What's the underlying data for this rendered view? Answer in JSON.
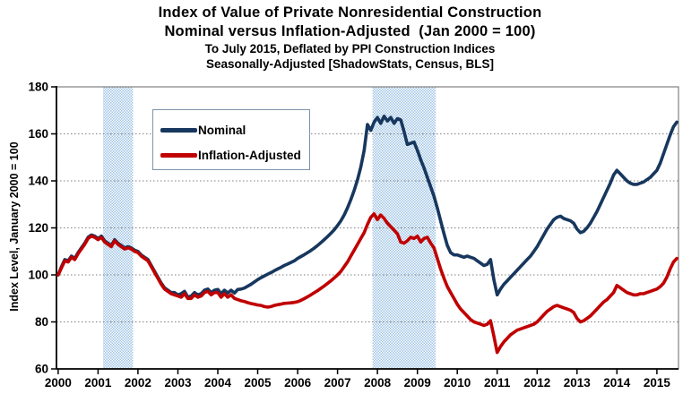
{
  "chart_data": {
    "type": "line",
    "title_lines": [
      "Index of Value of Private Nonresidential Construction",
      "Nominal versus Inflation-Adjusted  (Jan 2000 = 100)",
      "To July 2015, Deflated by PPI Construction Indices",
      "Seasonally-Adjusted [ShadowStats, Census, BLS]"
    ],
    "y_axis": {
      "label": "Index Level, January 2000 = 100",
      "min": 60,
      "max": 180,
      "tick_step": 20,
      "ticks": [
        180,
        160,
        140,
        120,
        100,
        80,
        60
      ]
    },
    "x_axis": {
      "ticks": [
        2000,
        2001,
        2002,
        2003,
        2004,
        2005,
        2006,
        2007,
        2008,
        2009,
        2010,
        2011,
        2012,
        2013,
        2014,
        2015
      ],
      "start": "2000-01",
      "end": "2015-07",
      "frequency": "monthly"
    },
    "recession_bands": [
      {
        "start": "2001-03",
        "end": "2001-11"
      },
      {
        "start": "2007-12",
        "end": "2009-06"
      }
    ],
    "band_color": "#9DC3E6",
    "grid_color": "#808080",
    "frame_color": "#808080",
    "axis_color": "#000000",
    "legend": {
      "items": [
        "Nominal",
        "Inflation-Adjusted"
      ]
    },
    "series": [
      {
        "name": "Nominal",
        "color": "#17375E",
        "values": [
          100,
          103.5,
          106.5,
          106,
          108,
          107,
          109.5,
          111.5,
          113.5,
          116,
          117,
          116.5,
          115.5,
          116.5,
          114.5,
          113.5,
          112.5,
          115,
          113.5,
          112.5,
          111.5,
          112,
          111.5,
          110.5,
          110,
          108.5,
          107.5,
          106.5,
          104,
          101.5,
          99,
          96.5,
          94.5,
          93.5,
          92.5,
          92.5,
          91.5,
          92,
          93,
          90.5,
          91,
          92.5,
          91.5,
          92,
          93.5,
          94,
          92.5,
          93.5,
          93.8,
          92,
          93.5,
          92.3,
          93.5,
          92.3,
          93.8,
          94,
          94.4,
          95.2,
          96,
          97,
          98,
          98.8,
          99.6,
          100.3,
          101,
          101.8,
          102.5,
          103.2,
          104,
          104.6,
          105.3,
          106,
          107,
          107.8,
          108.6,
          109.5,
          110.4,
          111.4,
          112.5,
          113.7,
          115,
          116.3,
          117.7,
          119.2,
          121,
          123,
          125.5,
          128.5,
          132,
          136,
          140.5,
          146,
          153,
          164,
          161.5,
          165,
          167,
          164.5,
          167.5,
          165.5,
          167,
          164.5,
          166.5,
          166,
          161,
          155.5,
          156,
          156.5,
          153,
          149,
          145.5,
          141.5,
          137.5,
          133.5,
          128.5,
          123,
          117.5,
          112.5,
          109.5,
          108.5,
          108.5,
          108,
          107.5,
          108,
          107.5,
          107,
          106,
          105,
          104,
          104.5,
          106.5,
          98,
          91.5,
          94,
          96,
          97.5,
          99,
          100.5,
          102,
          103.5,
          105,
          106.5,
          108,
          110,
          112,
          114.5,
          117,
          119.5,
          121.5,
          123.5,
          124.5,
          125,
          124,
          123.5,
          123,
          122,
          119.5,
          118,
          118.5,
          120,
          122,
          124.5,
          127,
          130,
          133,
          136,
          139,
          142.5,
          144.5,
          143,
          141.5,
          140,
          139,
          138.5,
          138.5,
          139,
          139.5,
          140.5,
          141.5,
          143,
          144.5,
          147.5,
          151.5,
          155.5,
          159.5,
          163,
          165
        ]
      },
      {
        "name": "Inflation-Adjusted",
        "color": "#C00000",
        "values": [
          100,
          103,
          106,
          105.5,
          107.5,
          106.5,
          109,
          111,
          113,
          115.5,
          116.5,
          116,
          115,
          116,
          114,
          113,
          112,
          114.5,
          113,
          112,
          111,
          111.5,
          111,
          110,
          109.5,
          108,
          107,
          106,
          103.5,
          101,
          98.5,
          96,
          94,
          93,
          92,
          91.5,
          91,
          90.5,
          92,
          90,
          90,
          91.5,
          90.5,
          91,
          92.5,
          93,
          91.5,
          92.5,
          92.5,
          90.5,
          92,
          90.5,
          91.5,
          90,
          89.5,
          89,
          88.7,
          88.2,
          87.8,
          87.5,
          87.2,
          87,
          86.5,
          86.3,
          86.5,
          87,
          87.3,
          87.6,
          87.9,
          88,
          88.1,
          88.3,
          88.6,
          89.2,
          89.9,
          90.7,
          91.5,
          92.4,
          93.3,
          94.3,
          95.3,
          96.4,
          97.5,
          98.7,
          100,
          101.5,
          103.5,
          105.5,
          108,
          110.5,
          113,
          115.5,
          118,
          121.5,
          124.5,
          126,
          123.5,
          125.5,
          124,
          122,
          120.5,
          119,
          117.5,
          114,
          113.5,
          114.5,
          116,
          115.5,
          116.5,
          114,
          115.5,
          116,
          113.5,
          111.5,
          107,
          102.5,
          98.5,
          95,
          92.5,
          90,
          87.5,
          85.5,
          84,
          82.5,
          81,
          80,
          79.5,
          79,
          78.5,
          79,
          80.5,
          74,
          67,
          69.5,
          71.5,
          73,
          74.5,
          75.5,
          76.5,
          77,
          77.5,
          78,
          78.5,
          79,
          80,
          81.5,
          83,
          84.5,
          85.5,
          86.5,
          87,
          86.5,
          86,
          85.5,
          85,
          84,
          81.5,
          80,
          80.5,
          81.5,
          82.5,
          84,
          85.5,
          87,
          88.5,
          89.5,
          91,
          92.5,
          95.5,
          94.5,
          93.5,
          92.5,
          92,
          91.5,
          91.5,
          92,
          92,
          92.5,
          93,
          93.5,
          94,
          95,
          96.5,
          99,
          102.5,
          105.5,
          107
        ]
      }
    ]
  }
}
